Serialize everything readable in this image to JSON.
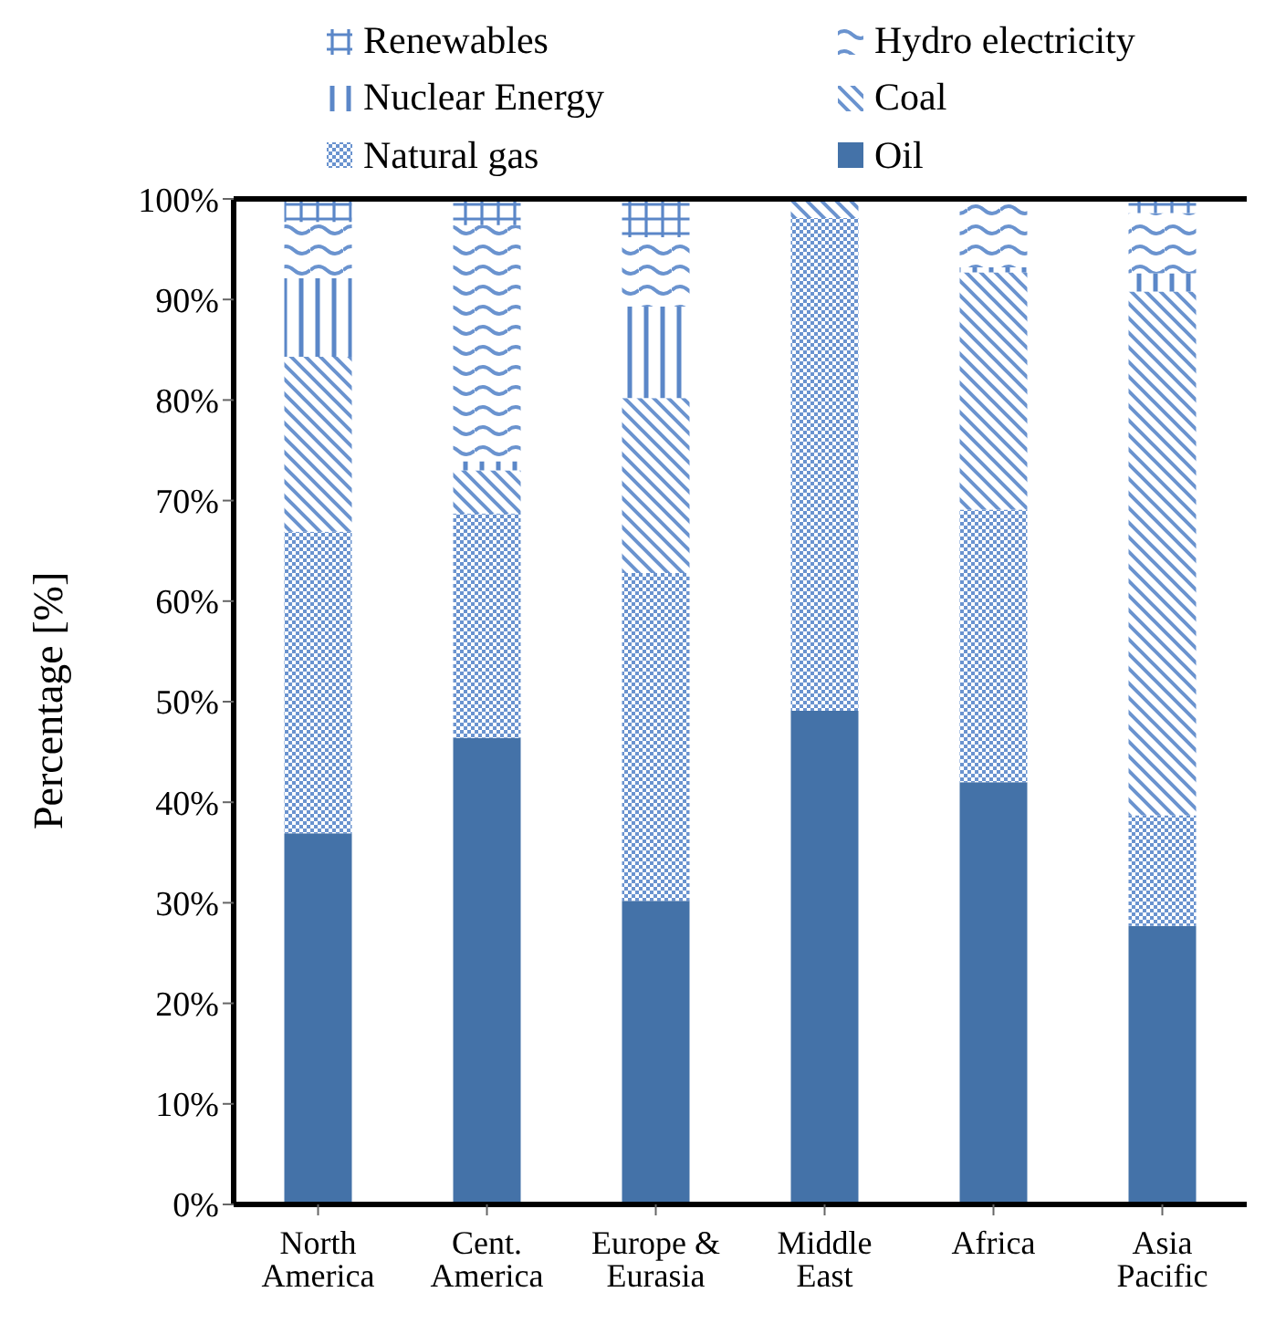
{
  "chart_data": {
    "type": "bar",
    "stacked": true,
    "categories": [
      "North America",
      "Cent. America",
      "Europe & Eurasia",
      "Middle East",
      "Africa",
      "Asia Pacific"
    ],
    "series": [
      {
        "name": "Oil",
        "color": "#4472a8",
        "values": [
          36.9,
          46.4,
          30.2,
          49.1,
          42.0,
          27.7
        ]
      },
      {
        "name": "Natural gas",
        "color": "#6a93cf",
        "values": [
          30.0,
          22.3,
          32.6,
          49.0,
          27.1,
          11.0
        ]
      },
      {
        "name": "Coal",
        "color": "#6a93cf",
        "values": [
          17.4,
          4.3,
          17.4,
          1.9,
          23.6,
          52.1
        ]
      },
      {
        "name": "Nuclear Energy",
        "color": "#5b87c8",
        "values": [
          7.8,
          0.9,
          9.1,
          0,
          0.5,
          1.8
        ]
      },
      {
        "name": "Hydro electricity",
        "color": "#6a93cf",
        "values": [
          5.6,
          23.5,
          6.9,
          0,
          6.5,
          6.0
        ]
      },
      {
        "name": "Renewables",
        "color": "#5b87c8",
        "values": [
          2.3,
          2.6,
          3.8,
          0,
          0,
          1.4
        ]
      }
    ],
    "ylabel": "Percentage [%]",
    "ylim": [
      0,
      100
    ],
    "yticks": [
      {
        "value": 0,
        "label": "0%"
      },
      {
        "value": 10,
        "label": "10%"
      },
      {
        "value": 20,
        "label": "20%"
      },
      {
        "value": 30,
        "label": "30%"
      },
      {
        "value": 40,
        "label": "40%"
      },
      {
        "value": 50,
        "label": "50%"
      },
      {
        "value": 60,
        "label": "60%"
      },
      {
        "value": 70,
        "label": "70%"
      },
      {
        "value": 80,
        "label": "80%"
      },
      {
        "value": 90,
        "label": "90%"
      },
      {
        "value": 100,
        "label": "100%"
      }
    ],
    "legend": "top",
    "grid": false
  }
}
